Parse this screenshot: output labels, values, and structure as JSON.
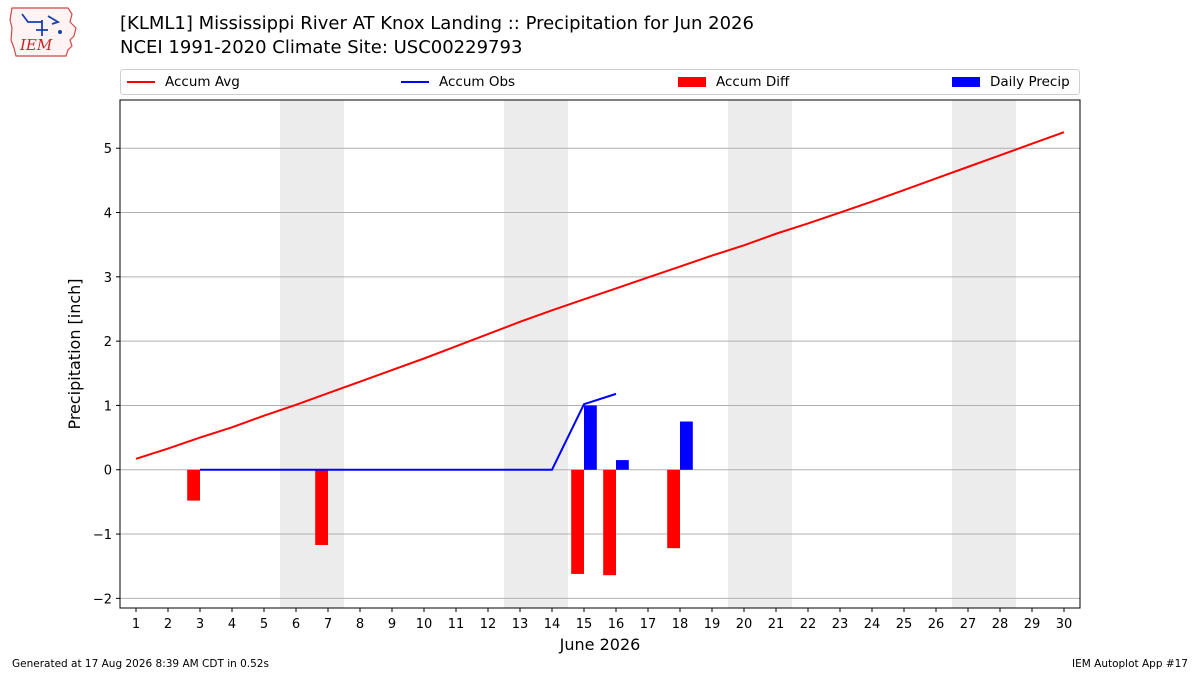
{
  "header": {
    "title_line1": "[KLML1] Mississippi River  AT Knox Landing :: Precipitation for Jun 2026",
    "title_line2": "NCEI 1991-2020 Climate Site: USC00229793",
    "logo_text": "IEM"
  },
  "footer": {
    "left": "Generated at 17 Aug 2026 8:39 AM CDT in 0.52s",
    "right": "IEM Autoplot App #17"
  },
  "colors": {
    "accum_avg": "#ff0000",
    "accum_obs": "#0000ff",
    "accum_diff": "#ff0000",
    "daily_precip": "#0000ff",
    "weekend_shade": "#ececec",
    "grid": "#b0b0b0"
  },
  "chart_data": {
    "type": "bar",
    "title": "[KLML1] Mississippi River  AT Knox Landing :: Precipitation for Jun 2026",
    "subtitle": "NCEI 1991-2020 Climate Site: USC00229793",
    "xlabel": "June 2026",
    "ylabel": "Precipitation [inch]",
    "x": [
      1,
      2,
      3,
      4,
      5,
      6,
      7,
      8,
      9,
      10,
      11,
      12,
      13,
      14,
      15,
      16,
      17,
      18,
      19,
      20,
      21,
      22,
      23,
      24,
      25,
      26,
      27,
      28,
      29,
      30
    ],
    "xlim": [
      0.5,
      30.5
    ],
    "ylim": [
      -2.15,
      5.75
    ],
    "yticks": [
      -2,
      -1,
      0,
      1,
      2,
      3,
      4,
      5
    ],
    "grid": "y",
    "legend_position": "top",
    "shaded_days": [
      [
        6,
        7
      ],
      [
        13,
        14
      ],
      [
        20,
        21
      ],
      [
        27,
        28
      ]
    ],
    "series": [
      {
        "name": "Accum Avg",
        "kind": "line",
        "x": [
          1,
          2,
          3,
          4,
          5,
          6,
          7,
          8,
          9,
          10,
          11,
          12,
          13,
          14,
          15,
          16,
          17,
          18,
          19,
          20,
          21,
          22,
          23,
          24,
          25,
          26,
          27,
          28,
          29,
          30
        ],
        "values": [
          0.17,
          0.33,
          0.5,
          0.66,
          0.84,
          1.01,
          1.19,
          1.37,
          1.55,
          1.73,
          1.92,
          2.11,
          2.3,
          2.48,
          2.65,
          2.82,
          2.99,
          3.16,
          3.33,
          3.49,
          3.67,
          3.83,
          4.0,
          4.17,
          4.35,
          4.53,
          4.71,
          4.89,
          5.07,
          5.25
        ]
      },
      {
        "name": "Accum Obs",
        "kind": "line",
        "x": [
          3,
          4,
          5,
          6,
          7,
          8,
          9,
          10,
          11,
          12,
          13,
          14,
          15,
          16
        ],
        "values": [
          0.0,
          0.0,
          0.0,
          0.0,
          0.0,
          0.0,
          0.0,
          0.0,
          0.0,
          0.0,
          0.0,
          0.0,
          1.02,
          1.18
        ]
      },
      {
        "name": "Accum Diff",
        "kind": "bar",
        "x": [
          3,
          7,
          15,
          16,
          18
        ],
        "values": [
          -0.48,
          -1.17,
          -1.62,
          -1.64,
          -1.22
        ]
      },
      {
        "name": "Daily Precip",
        "kind": "bar",
        "x": [
          3,
          7,
          15,
          16,
          18
        ],
        "values": [
          0.01,
          0.01,
          1.0,
          0.15,
          0.75
        ]
      }
    ]
  }
}
